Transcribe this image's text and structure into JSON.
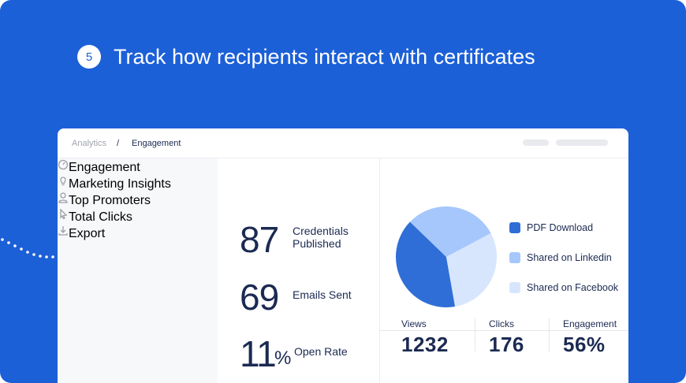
{
  "header": {
    "step": "5",
    "title": "Track how recipients interact with certificates"
  },
  "breadcrumb": {
    "parent": "Analytics",
    "separator": "/",
    "current": "Engagement"
  },
  "menu": [
    "Engagement",
    "Marketing Insights",
    "Top Promoters",
    "Total Clicks",
    "Export"
  ],
  "stats": [
    {
      "value": "87",
      "label": "Credentials Published"
    },
    {
      "value": "69",
      "label": "Emails Sent"
    },
    {
      "value": "11",
      "unit": "%",
      "label": "Open Rate"
    }
  ],
  "chart_data": {
    "type": "pie",
    "categories": [
      "PDF Download",
      "Shared on Linkedin",
      "Shared on Facebook"
    ],
    "values": [
      40,
      30,
      30
    ],
    "colors": [
      "#2f6ed6",
      "#a6c7fb",
      "#d7e6fd"
    ]
  },
  "metrics": [
    {
      "label": "Views",
      "value": "1232"
    },
    {
      "label": "Clicks",
      "value": "176"
    },
    {
      "label": "Engagement",
      "value": "56%"
    }
  ]
}
